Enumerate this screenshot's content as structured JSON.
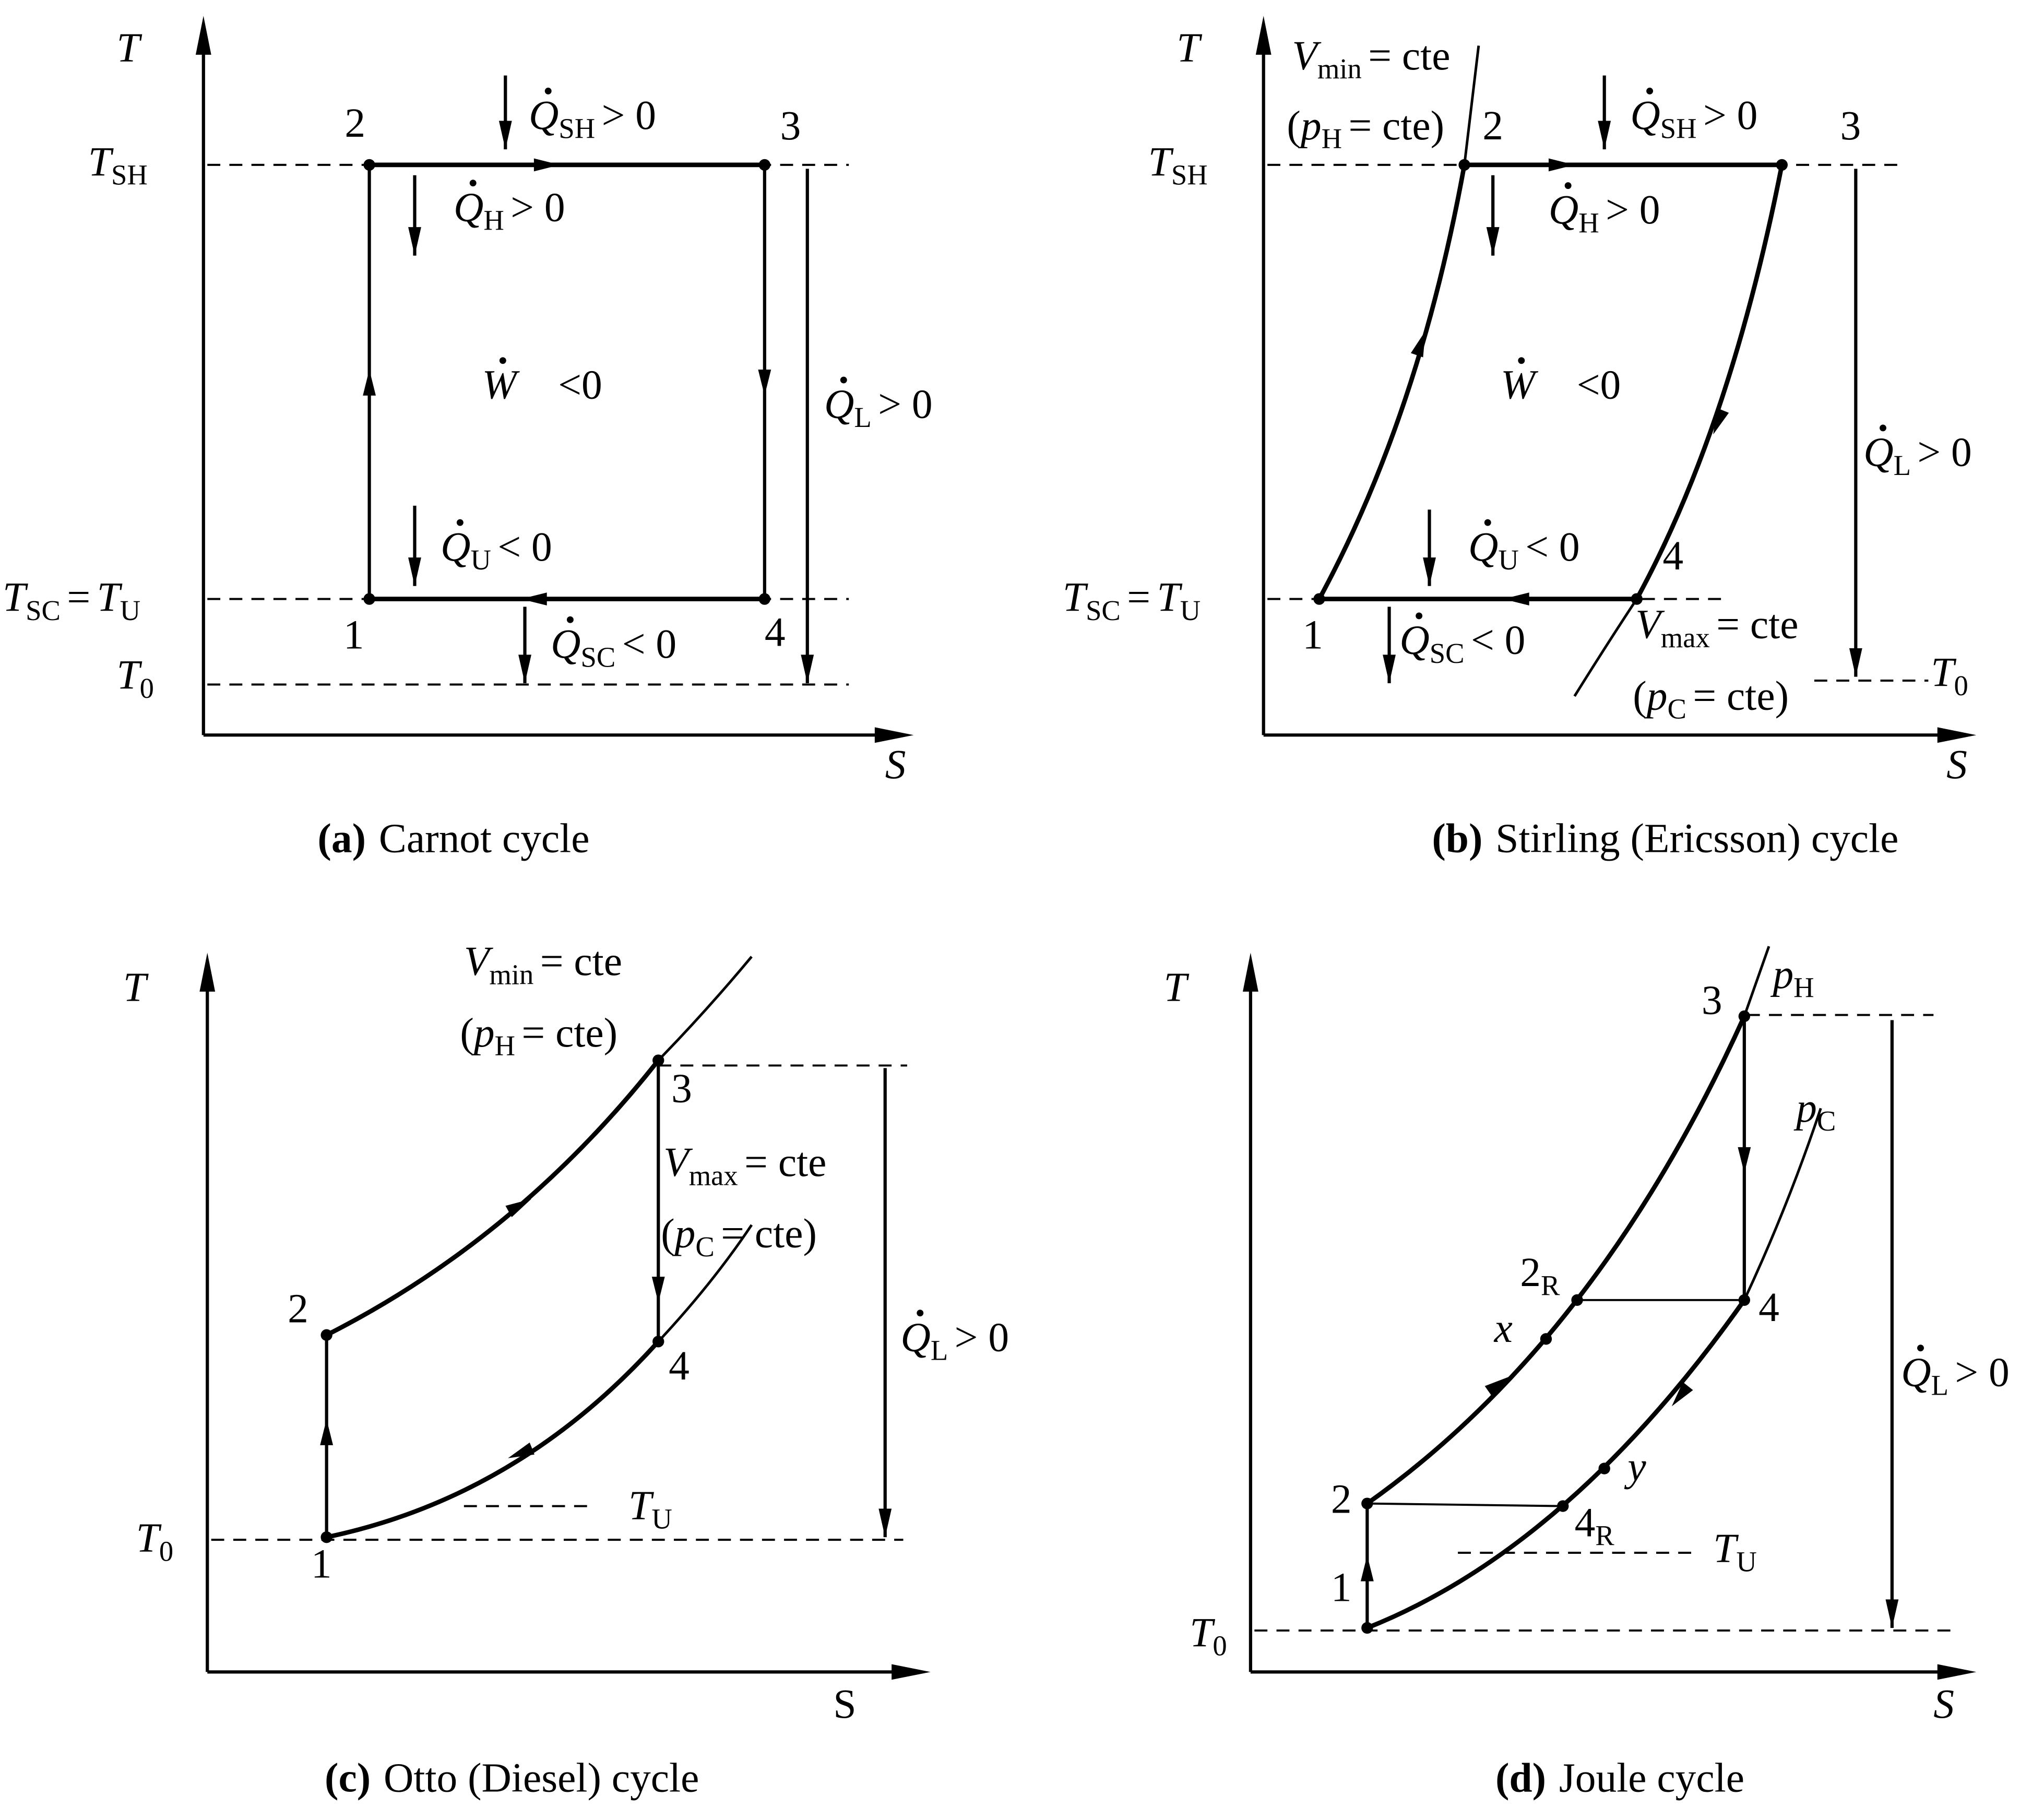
{
  "panels": [
    {
      "caption": {
        "letter": "(a)",
        "title": "Carnot cycle"
      },
      "axes": {
        "y": {
          "sym": "T"
        },
        "x": {
          "sym": "S"
        }
      },
      "temps": [
        {
          "sym": "T",
          "sub": "SH"
        },
        {
          "sym": "T",
          "sub": "SC",
          "eq": "=",
          "sym2": "T",
          "sub2": "U"
        },
        {
          "sym": "T",
          "sub": "0"
        }
      ],
      "points": [
        {
          "n": "1"
        },
        {
          "n": "2"
        },
        {
          "n": "3"
        },
        {
          "n": "4"
        }
      ],
      "heat": [
        {
          "sym": "Q",
          "sub": "SH",
          "rel": "> 0"
        },
        {
          "sym": "Q",
          "sub": "H",
          "rel": "> 0"
        },
        {
          "sym": "Q",
          "sub": "U",
          "rel": "< 0"
        },
        {
          "sym": "Q",
          "sub": "SC",
          "rel": "< 0"
        },
        {
          "sym": "Q",
          "sub": "L",
          "rel": "> 0"
        }
      ],
      "work": {
        "sym": "W",
        "rel": "<0"
      }
    },
    {
      "caption": {
        "letter": "(b)",
        "title": "Stirling (Ericsson) cycle"
      },
      "axes": {
        "y": {
          "sym": "T"
        },
        "x": {
          "sym": "S"
        }
      },
      "temps": [
        {
          "sym": "T",
          "sub": "SH"
        },
        {
          "sym": "T",
          "sub": "SC",
          "eq": "=",
          "sym2": "T",
          "sub2": "U"
        },
        {
          "sym": "T",
          "sub": "0"
        }
      ],
      "points": [
        {
          "n": "1"
        },
        {
          "n": "2"
        },
        {
          "n": "3"
        },
        {
          "n": "4"
        }
      ],
      "heat": [
        {
          "sym": "Q",
          "sub": "SH",
          "rel": "> 0"
        },
        {
          "sym": "Q",
          "sub": "H",
          "rel": "> 0"
        },
        {
          "sym": "Q",
          "sub": "U",
          "rel": "< 0"
        },
        {
          "sym": "Q",
          "sub": "SC",
          "rel": "< 0"
        },
        {
          "sym": "Q",
          "sub": "L",
          "rel": "> 0"
        }
      ],
      "work": {
        "sym": "W",
        "rel": "<0"
      },
      "lines": [
        {
          "sym": "V",
          "sub": "min",
          "rel": "= cte"
        },
        {
          "pre": "(",
          "sym": "p",
          "sub": "H",
          "rel": "= cte)"
        },
        {
          "sym": "V",
          "sub": "max",
          "rel": "= cte"
        },
        {
          "pre": "(",
          "sym": "p",
          "sub": "C",
          "rel": "= cte)"
        }
      ]
    },
    {
      "caption": {
        "letter": "(c)",
        "title": "Otto (Diesel) cycle"
      },
      "axes": {
        "y": {
          "sym": "T"
        },
        "x": {
          "n": "S"
        }
      },
      "temps": [
        {
          "sym": "T",
          "sub": "0"
        },
        {
          "sym": "T",
          "sub": "U"
        }
      ],
      "points": [
        {
          "n": "1"
        },
        {
          "n": "2"
        },
        {
          "n": "3"
        },
        {
          "n": "4"
        }
      ],
      "heat": [
        {
          "sym": "Q",
          "sub": "L",
          "rel": "> 0"
        }
      ],
      "lines": [
        {
          "sym": "V",
          "sub": "min",
          "rel": "= cte"
        },
        {
          "pre": "(",
          "sym": "p",
          "sub": "H",
          "rel": "= cte)"
        },
        {
          "sym": "V",
          "sub": "max",
          "rel": "= cte"
        },
        {
          "pre": "(",
          "sym": "p",
          "sub": "C",
          "rel": "= cte)"
        }
      ]
    },
    {
      "caption": {
        "letter": "(d)",
        "title": "Joule cycle"
      },
      "axes": {
        "y": {
          "sym": "T"
        },
        "x": {
          "sym": "S"
        }
      },
      "temps": [
        {
          "sym": "T",
          "sub": "0"
        },
        {
          "sym": "T",
          "sub": "U"
        }
      ],
      "points": [
        {
          "n": "1"
        },
        {
          "n": "2"
        },
        {
          "n": "3"
        },
        {
          "n": "4"
        },
        {
          "n": "2",
          "sub": "R"
        },
        {
          "n": "4",
          "sub": "R"
        },
        {
          "sym": "x"
        },
        {
          "sym": "y"
        }
      ],
      "heat": [
        {
          "sym": "Q",
          "sub": "L",
          "rel": "> 0"
        }
      ],
      "lines": [
        {
          "sym": "p",
          "sub": "H"
        },
        {
          "sym": "p",
          "sub": "C"
        }
      ]
    }
  ]
}
